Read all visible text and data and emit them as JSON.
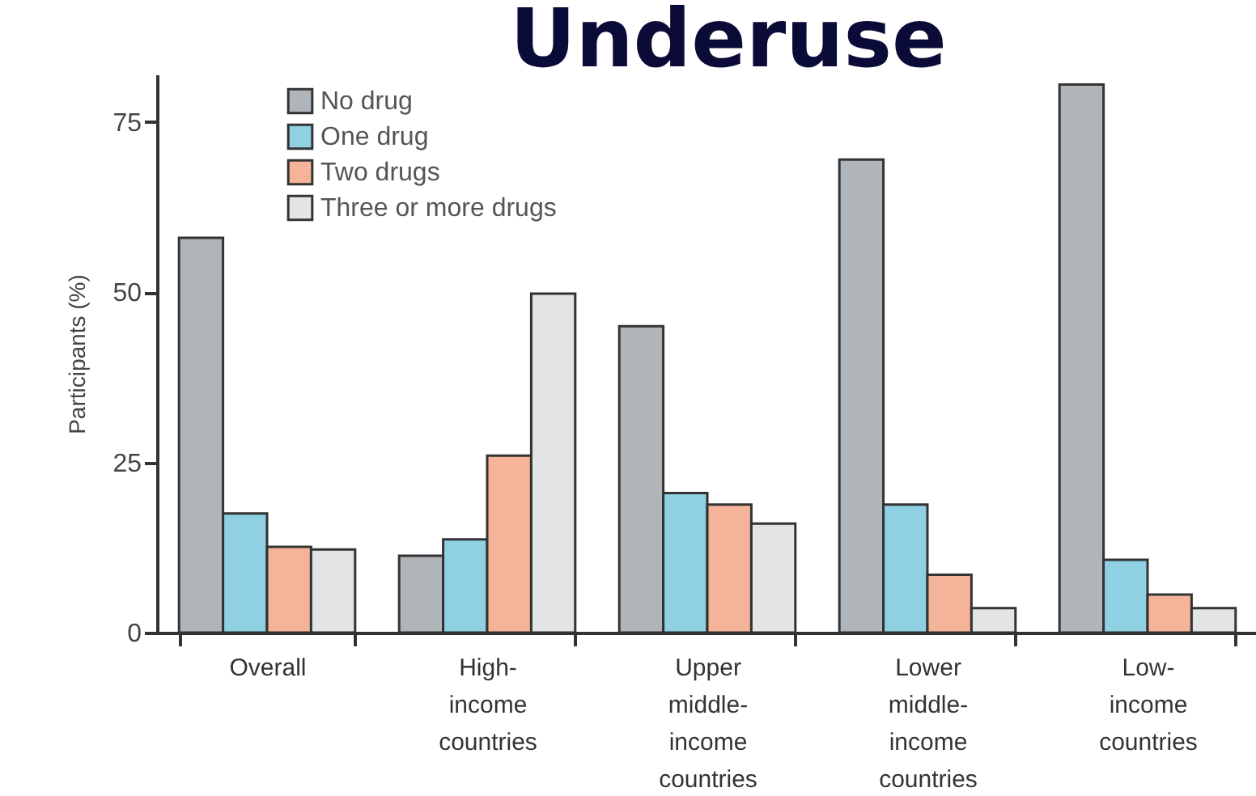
{
  "chart_data": {
    "type": "bar",
    "title": "Underuse",
    "ylabel": "Participants (%)",
    "categories": [
      "Overall",
      "High-\nincome\ncountries",
      "Upper\nmiddle-\nincome\ncountries",
      "Lower\nmiddle-\nincome\ncountries",
      "Low-\nincome\ncountries"
    ],
    "series": [
      {
        "name": "No drug",
        "color": "#b0b5ba",
        "values": [
          58,
          11.3,
          45,
          69.5,
          80.5
        ]
      },
      {
        "name": "One drug",
        "color": "#8fd0e3",
        "values": [
          17.5,
          13.7,
          20.5,
          18.8,
          10.7
        ]
      },
      {
        "name": "Two drugs",
        "color": "#f5b49a",
        "values": [
          12.6,
          26,
          18.8,
          8.5,
          5.6
        ]
      },
      {
        "name": "Three or more drugs",
        "color": "#e3e4e6",
        "values": [
          12.2,
          49.8,
          16,
          3.6,
          3.6
        ]
      }
    ],
    "ylim": [
      0,
      82
    ],
    "yticks": [
      0,
      25,
      50,
      75
    ],
    "grid": false,
    "legend": "top left"
  }
}
